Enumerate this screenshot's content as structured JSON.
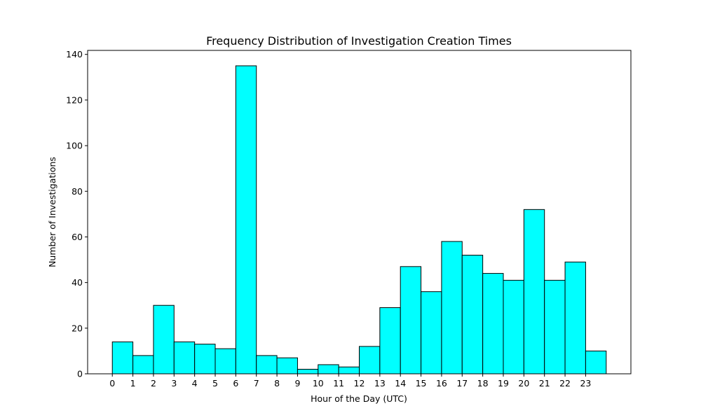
{
  "chart_data": {
    "type": "bar",
    "title": "Frequency Distribution of Investigation Creation Times",
    "xlabel": "Hour of the Day (UTC)",
    "ylabel": "Number of Investigations",
    "categories": [
      "0",
      "1",
      "2",
      "3",
      "4",
      "5",
      "6",
      "7",
      "8",
      "9",
      "10",
      "11",
      "12",
      "13",
      "14",
      "15",
      "16",
      "17",
      "18",
      "19",
      "20",
      "21",
      "22",
      "23"
    ],
    "values": [
      14,
      8,
      30,
      14,
      13,
      11,
      135,
      8,
      7,
      2,
      4,
      3,
      12,
      29,
      47,
      36,
      58,
      52,
      44,
      41,
      72,
      41,
      49,
      10
    ],
    "xlim": [
      -1.2,
      25.2
    ],
    "ylim": [
      0,
      141.75
    ],
    "yticks": [
      0,
      20,
      40,
      60,
      80,
      100,
      120,
      140
    ],
    "bar_color": "#00ffff",
    "edge_color": "#000000",
    "grid": false
  }
}
